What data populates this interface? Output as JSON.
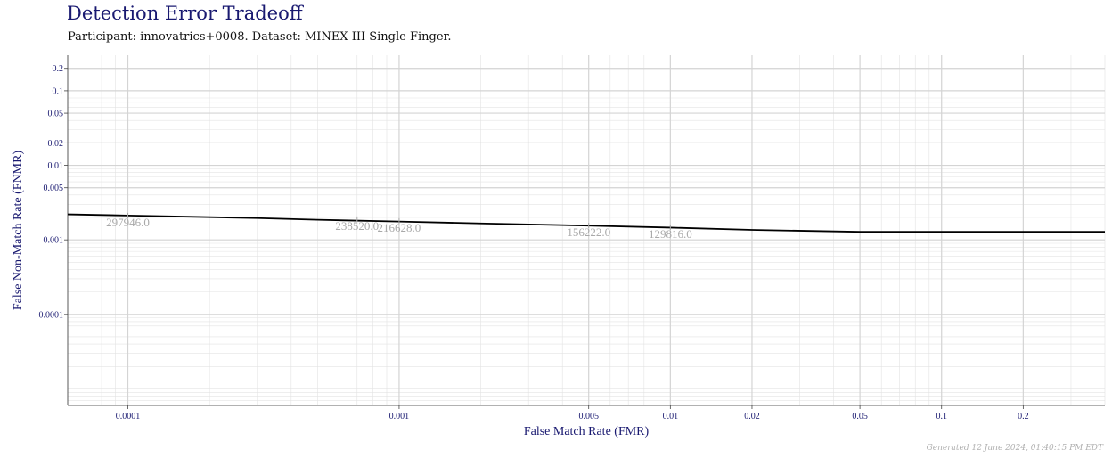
{
  "title": "Detection Error Tradeoff",
  "subtitle": "Participant: innovatrics+0008. Dataset: MINEX III Single Finger.",
  "footer": "Generated 12 June 2024, 01:40:15 PM EDT",
  "colors": {
    "title": "#191970",
    "line": "#000000",
    "threshold_label": "#a9a9a9",
    "grid": "#e3e3e3"
  },
  "chart_data": {
    "type": "line",
    "title": "Detection Error Tradeoff",
    "xlabel": "False Match Rate (FMR)",
    "ylabel": "False Non-Match Rate (FNMR)",
    "x_scale": "log",
    "y_scale": "log",
    "xlim": [
      6e-05,
      0.4
    ],
    "ylim": [
      6e-06,
      0.3
    ],
    "grid": true,
    "x_ticks": [
      {
        "value": 0.0001,
        "label": "0.0001"
      },
      {
        "value": 0.001,
        "label": "0.001"
      },
      {
        "value": 0.005,
        "label": "0.005"
      },
      {
        "value": 0.01,
        "label": "0.01"
      },
      {
        "value": 0.02,
        "label": "0.02"
      },
      {
        "value": 0.05,
        "label": "0.05"
      },
      {
        "value": 0.1,
        "label": "0.1"
      },
      {
        "value": 0.2,
        "label": "0.2"
      }
    ],
    "y_ticks": [
      {
        "value": 0.2,
        "label": "0.2"
      },
      {
        "value": 0.1,
        "label": "0.1"
      },
      {
        "value": 0.05,
        "label": "0.05"
      },
      {
        "value": 0.02,
        "label": "0.02"
      },
      {
        "value": 0.01,
        "label": "0.01"
      },
      {
        "value": 0.005,
        "label": "0.005"
      },
      {
        "value": 0.001,
        "label": "0.001"
      },
      {
        "value": 0.0001,
        "label": "0.0001"
      }
    ],
    "series": [
      {
        "x": [
          6e-05,
          0.0001,
          0.0003,
          0.0005,
          0.001,
          0.002,
          0.005,
          0.01,
          0.02,
          0.05,
          0.1,
          0.4
        ],
        "y": [
          0.0022,
          0.00212,
          0.00196,
          0.00186,
          0.00176,
          0.00166,
          0.00155,
          0.00146,
          0.00136,
          0.00128,
          0.00128,
          0.00128
        ]
      }
    ],
    "annotations": [
      {
        "x": 0.0001,
        "y": 0.00212,
        "text": "297946.0"
      },
      {
        "x": 0.0007,
        "y": 0.0019,
        "text": "238520.0"
      },
      {
        "x": 0.001,
        "y": 0.0018,
        "text": "216628.0"
      },
      {
        "x": 0.005,
        "y": 0.00156,
        "text": "156222.0"
      },
      {
        "x": 0.01,
        "y": 0.00148,
        "text": "129816.0"
      }
    ]
  }
}
